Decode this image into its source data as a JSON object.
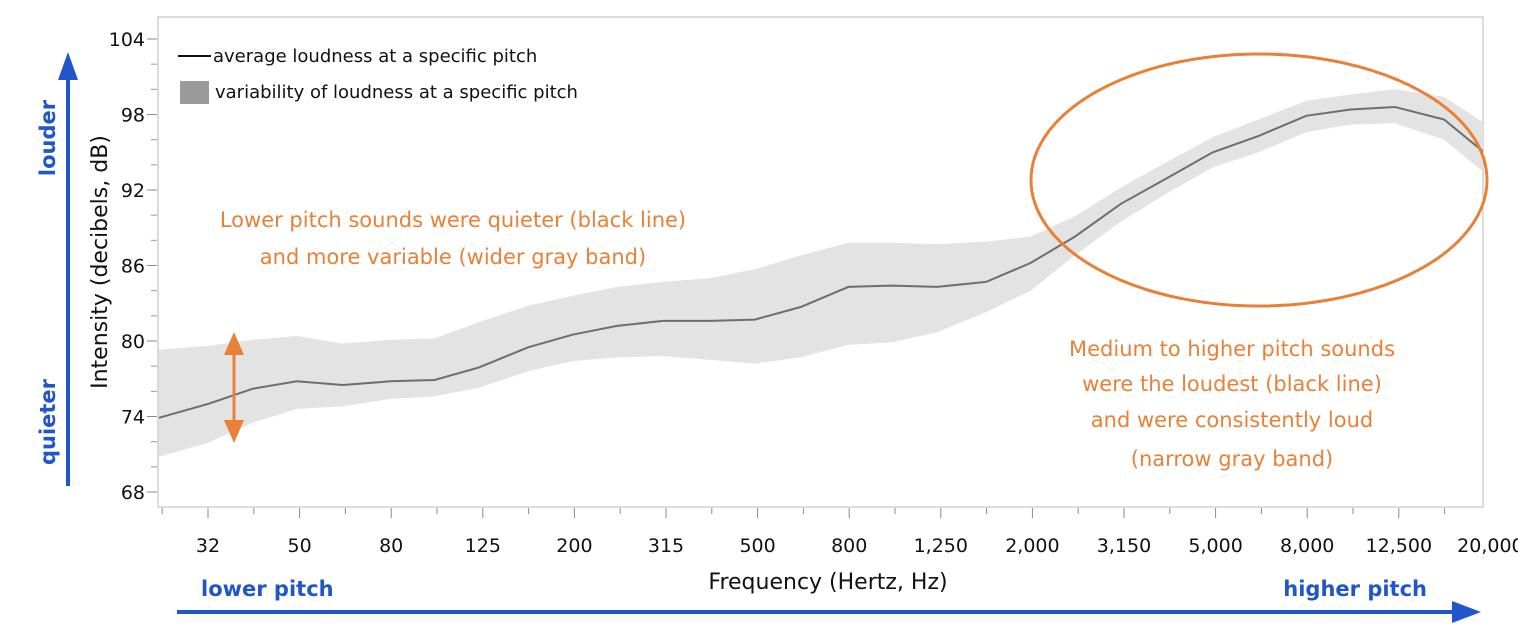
{
  "chart_data": {
    "type": "area",
    "title": "",
    "xlabel": "Frequency (Hertz, Hz)",
    "ylabel": "Intensity  (decibels, dB)",
    "x_scale": "log",
    "x_ticks": [
      "32",
      "50",
      "80",
      "125",
      "200",
      "315",
      "500",
      "800",
      "1,250",
      "2,000",
      "3,150",
      "5,000",
      "8,000",
      "12,500",
      "20,000"
    ],
    "y_ticks": [
      "68",
      "74",
      "80",
      "86",
      "92",
      "98",
      "104"
    ],
    "ylim": [
      67,
      105
    ],
    "series": [
      {
        "name": "average loudness at a specific pitch",
        "kind": "line",
        "x": [
          25,
          32,
          40,
          50,
          63,
          80,
          100,
          125,
          160,
          200,
          250,
          315,
          400,
          500,
          630,
          800,
          1000,
          1250,
          1600,
          2000,
          2500,
          3150,
          4000,
          5000,
          6300,
          8000,
          10000,
          12500,
          16000,
          20000
        ],
        "y": [
          73.9,
          75.0,
          76.2,
          76.8,
          76.5,
          76.8,
          76.9,
          77.9,
          79.5,
          80.5,
          81.2,
          81.6,
          81.6,
          81.7,
          82.7,
          84.3,
          84.4,
          84.3,
          84.7,
          86.2,
          88.3,
          90.9,
          93.0,
          95.0,
          96.3,
          97.9,
          98.4,
          98.6,
          97.6,
          94.7
        ]
      },
      {
        "name": "variability of loudness at a specific pitch",
        "kind": "band",
        "x": [
          25,
          32,
          40,
          50,
          63,
          80,
          100,
          125,
          160,
          200,
          250,
          315,
          400,
          500,
          630,
          800,
          1000,
          1250,
          1600,
          2000,
          2500,
          3150,
          4000,
          5000,
          6300,
          8000,
          10000,
          12500,
          16000,
          20000
        ],
        "upper": [
          79.3,
          79.6,
          80.1,
          80.4,
          79.8,
          80.1,
          80.2,
          81.5,
          82.8,
          83.6,
          84.3,
          84.7,
          85.0,
          85.7,
          86.8,
          87.8,
          87.8,
          87.7,
          87.9,
          88.3,
          89.9,
          92.2,
          94.3,
          96.2,
          97.6,
          99.1,
          99.6,
          100.0,
          99.4,
          97.1
        ],
        "lower": [
          70.8,
          71.9,
          73.5,
          74.6,
          74.8,
          75.4,
          75.6,
          76.3,
          77.6,
          78.4,
          78.7,
          78.8,
          78.5,
          78.2,
          78.7,
          79.7,
          79.9,
          80.7,
          82.3,
          84.0,
          86.8,
          89.5,
          91.8,
          93.8,
          95.0,
          96.6,
          97.2,
          97.3,
          96.0,
          93.1
        ]
      }
    ],
    "legend": {
      "position": "top-left",
      "line_label": "average loudness at a specific pitch",
      "band_label": "variability of loudness at a specific pitch"
    },
    "annotations": {
      "low_note": [
        "Lower pitch sounds were quieter (black line)",
        "and more variable (wider gray band)"
      ],
      "high_note": [
        "Medium to higher pitch sounds",
        "were the loudest (black line)",
        "and were consistently loud",
        "(narrow gray band)"
      ],
      "louder": "louder",
      "quieter": "quieter",
      "lower_pitch": "lower pitch",
      "higher_pitch": "higher pitch"
    },
    "colors": {
      "line": "#6E6E6E",
      "band": "#E3E3E3",
      "legend_swatch": "#9A9A9A",
      "annotation": "#E98036",
      "pitch_arrows": "#1F56C9"
    }
  }
}
